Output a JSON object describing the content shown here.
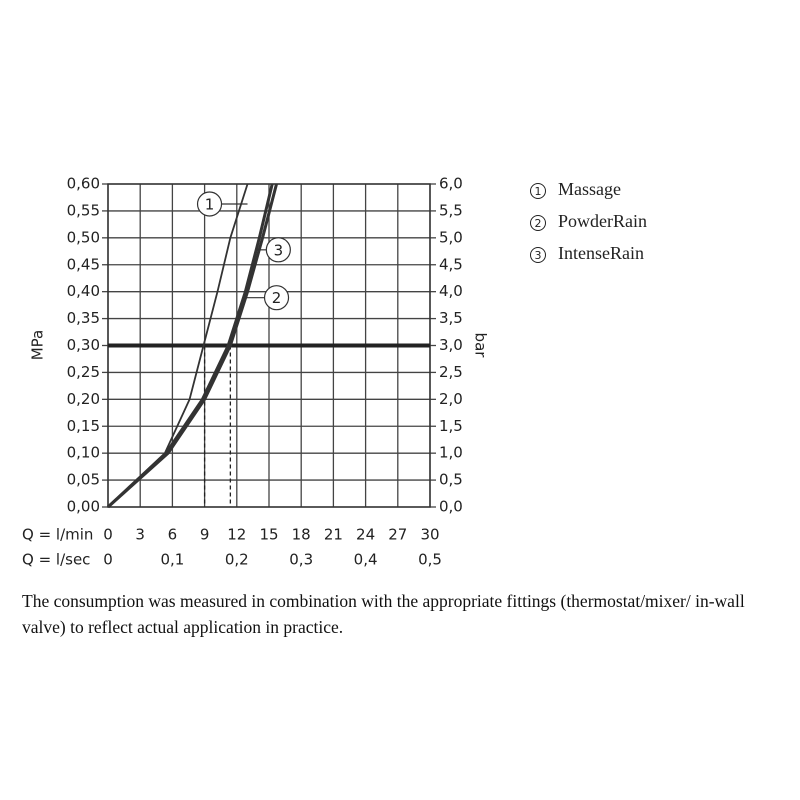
{
  "chart_data": {
    "type": "line",
    "y_label": "MPa",
    "y2_label": "bar",
    "x_label": "Q = l/min",
    "x2_label": "Q = l/sec",
    "xlim": [
      0,
      30
    ],
    "xticks": [
      0,
      3,
      6,
      9,
      12,
      15,
      18,
      21,
      24,
      27,
      30
    ],
    "x2lim": [
      0,
      0.5
    ],
    "x2ticks": [
      0,
      {
        "value": 0.1,
        "label": "0,1"
      },
      {
        "value": 0.2,
        "label": "0,2"
      },
      {
        "value": 0.3,
        "label": "0,3"
      },
      {
        "value": 0.4,
        "label": "0,4"
      },
      {
        "value": 0.5,
        "label": "0,5"
      }
    ],
    "ylim": [
      0,
      0.6
    ],
    "yticks": [
      {
        "value": 0,
        "label": "0,00"
      },
      {
        "value": 0.05,
        "label": "0,05"
      },
      {
        "value": 0.1,
        "label": "0,10"
      },
      {
        "value": 0.15,
        "label": "0,15"
      },
      {
        "value": 0.2,
        "label": "0,20"
      },
      {
        "value": 0.25,
        "label": "0,25"
      },
      {
        "value": 0.3,
        "label": "0,30"
      },
      {
        "value": 0.35,
        "label": "0,35"
      },
      {
        "value": 0.4,
        "label": "0,40"
      },
      {
        "value": 0.45,
        "label": "0,45"
      },
      {
        "value": 0.5,
        "label": "0,50"
      },
      {
        "value": 0.55,
        "label": "0,55"
      },
      {
        "value": 0.6,
        "label": "0,60"
      }
    ],
    "y2lim": [
      0,
      6
    ],
    "y2ticks": [
      {
        "value": 0,
        "label": "0,0"
      },
      {
        "value": 0.5,
        "label": "0,5"
      },
      {
        "value": 1,
        "label": "1,0"
      },
      {
        "value": 1.5,
        "label": "1,5"
      },
      {
        "value": 2,
        "label": "2,0"
      },
      {
        "value": 2.5,
        "label": "2,5"
      },
      {
        "value": 3,
        "label": "3,0"
      },
      {
        "value": 3.5,
        "label": "3,5"
      },
      {
        "value": 4,
        "label": "4,0"
      },
      {
        "value": 4.5,
        "label": "4,5"
      },
      {
        "value": 5,
        "label": "5,0"
      },
      {
        "value": 5.5,
        "label": "5,5"
      },
      {
        "value": 6,
        "label": "6,0"
      }
    ],
    "grid": true,
    "reference_y": 0.3,
    "reference_x": [
      9,
      11.4
    ],
    "series": [
      {
        "name": "Massage",
        "label": "1",
        "color": "#333333",
        "x": [
          0,
          5.3,
          7.6,
          8.9,
          10.2,
          11.4,
          13.0
        ],
        "values": [
          0,
          0.1,
          0.2,
          0.3,
          0.4,
          0.5,
          0.6
        ]
      },
      {
        "name": "PowderRain",
        "label": "2",
        "color": "#333333",
        "x": [
          0,
          5.6,
          9.0,
          11.4,
          13.0,
          14.4,
          15.7
        ],
        "values": [
          0,
          0.1,
          0.2,
          0.3,
          0.4,
          0.5,
          0.6
        ]
      },
      {
        "name": "IntenseRain",
        "label": "3",
        "color": "#333333",
        "x": [
          0,
          5.4,
          8.8,
          11.2,
          12.8,
          14.1,
          15.3
        ],
        "values": [
          0,
          0.1,
          0.2,
          0.3,
          0.4,
          0.5,
          0.6
        ]
      }
    ]
  },
  "caption": "The consumption was measured in combination with the appropriate fittings (thermostat/mixer/ in-wall valve) to reflect actual application in practice."
}
